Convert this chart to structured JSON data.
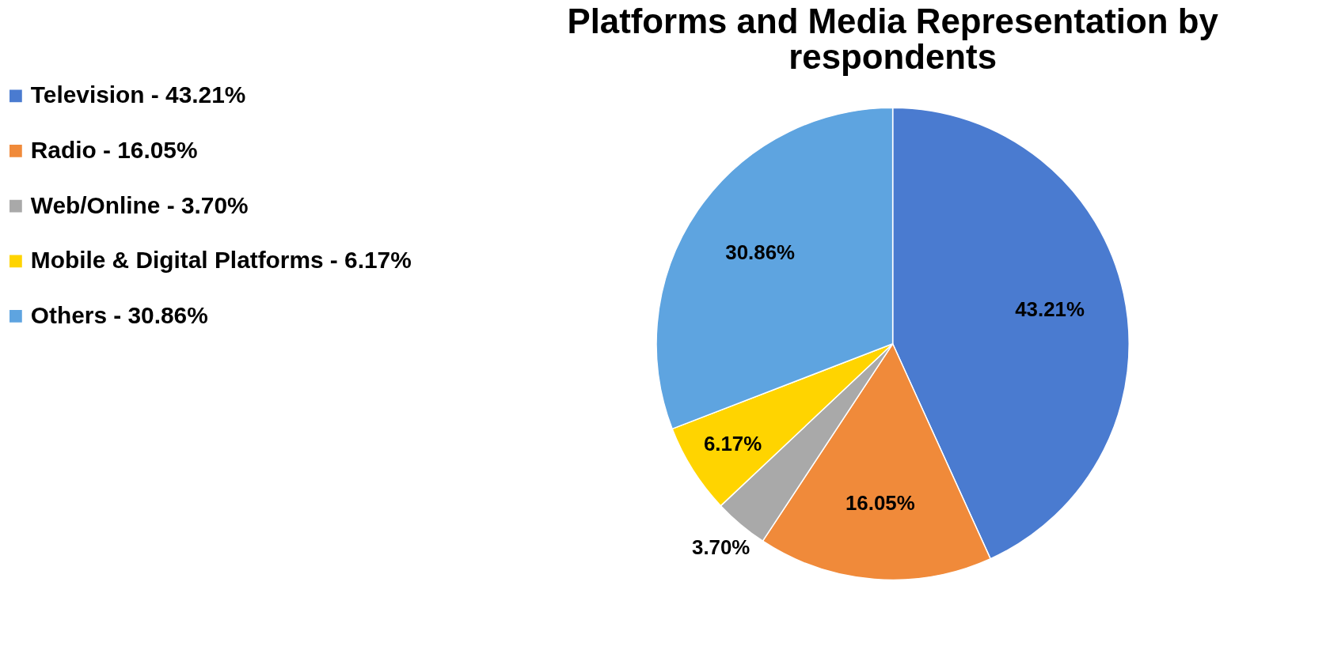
{
  "chart_data": {
    "type": "pie",
    "title": "Platforms and Media Representation by respondents",
    "categories": [
      "Television - 43.21%",
      "Radio - 16.05%",
      "Web/Online - 3.70%",
      "Mobile & Digital Platforms - 6.17%",
      "Others - 30.86%"
    ],
    "values": [
      43.21,
      16.05,
      3.7,
      6.17,
      30.86
    ],
    "colors": [
      "#4a7bd0",
      "#f08a3a",
      "#a9a9a9",
      "#ffd400",
      "#5ea4e0"
    ],
    "value_labels": [
      "43.21%",
      "16.05%",
      "3.70%",
      "6.17%",
      "30.86%"
    ],
    "legend": "left"
  }
}
